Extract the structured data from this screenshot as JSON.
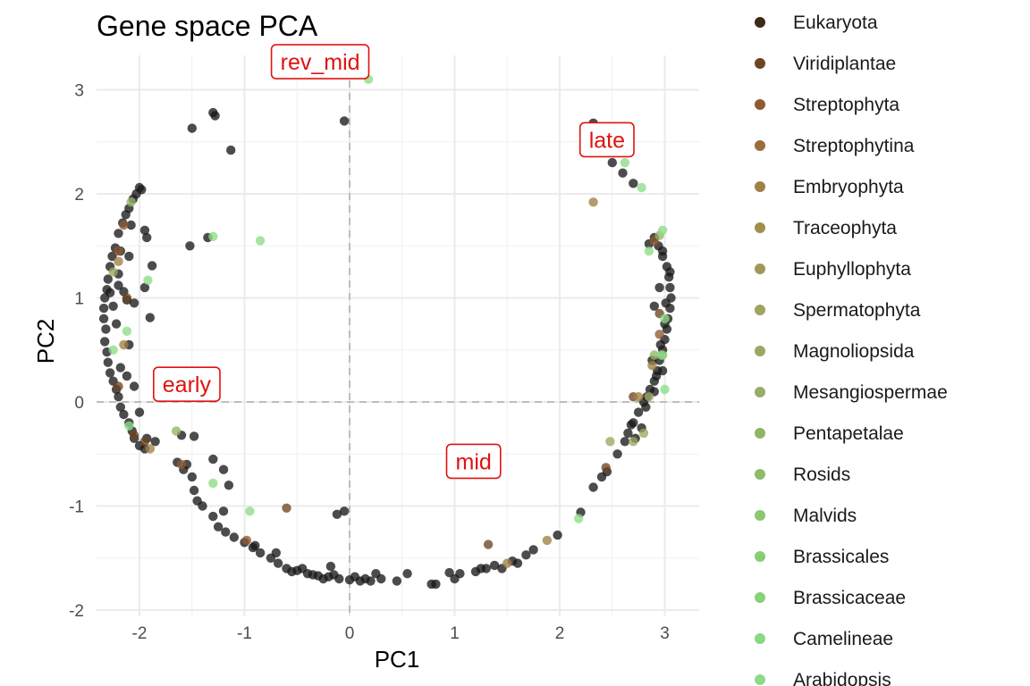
{
  "chart_data": {
    "type": "scatter",
    "title": "Gene space PCA",
    "xlabel": "PC1",
    "ylabel": "PC2",
    "xlim": [
      -2.45,
      3.35
    ],
    "ylim": [
      -2.1,
      3.3
    ],
    "xticks": [
      -2,
      -1,
      0,
      1,
      2,
      3
    ],
    "yticks": [
      -2,
      -1,
      0,
      1,
      2,
      3
    ],
    "xtick_labels": [
      "-2",
      "-1",
      "0",
      "1",
      "2",
      "3"
    ],
    "ytick_labels": [
      "-2",
      "-1",
      "0",
      "1",
      "2",
      "3"
    ],
    "grid": true,
    "reference_lines": {
      "x": 0,
      "y": 0,
      "style": "dashed"
    },
    "legend_position": "right",
    "legend": [
      {
        "label": "Eukaryota",
        "color": "#3d2a16"
      },
      {
        "label": "Viridiplantae",
        "color": "#6e4523"
      },
      {
        "label": "Streptophyta",
        "color": "#8f5a33"
      },
      {
        "label": "Streptophytina",
        "color": "#9a6d3a"
      },
      {
        "label": "Embryophyta",
        "color": "#a08045"
      },
      {
        "label": "Traceophyta",
        "color": "#a38f4c"
      },
      {
        "label": "Euphyllophyta",
        "color": "#a09858"
      },
      {
        "label": "Spermatophyta",
        "color": "#9ea35e"
      },
      {
        "label": "Magnoliopsida",
        "color": "#9ba862"
      },
      {
        "label": "Mesangiospermae",
        "color": "#98ad68"
      },
      {
        "label": "Pentapetalae",
        "color": "#92b467"
      },
      {
        "label": "Rosids",
        "color": "#8fbb6c"
      },
      {
        "label": "Malvids",
        "color": "#8ac770"
      },
      {
        "label": "Brassicales",
        "color": "#89cc74"
      },
      {
        "label": "Brassicaceae",
        "color": "#88d27a"
      },
      {
        "label": "Camelineae",
        "color": "#8ad881"
      },
      {
        "label": "Arabidopsis",
        "color": "#8cdc86"
      }
    ],
    "annotations": [
      {
        "label": "rev_mid",
        "x": -0.28,
        "y": 3.27
      },
      {
        "label": "late",
        "x": 2.45,
        "y": 2.52
      },
      {
        "label": "early",
        "x": -1.55,
        "y": 0.17
      },
      {
        "label": "mid",
        "x": 1.18,
        "y": -0.57
      }
    ],
    "series": [
      {
        "name": "Eukaryota",
        "color": "#1a1a1a",
        "points": [
          [
            -1.5,
            2.63
          ],
          [
            -1.3,
            2.78
          ],
          [
            -1.28,
            2.75
          ],
          [
            -1.13,
            2.42
          ],
          [
            -0.05,
            2.7
          ],
          [
            2.32,
            2.68
          ],
          [
            2.5,
            2.3
          ],
          [
            2.6,
            2.2
          ],
          [
            2.7,
            2.1
          ],
          [
            -2.0,
            2.06
          ],
          [
            -1.98,
            2.04
          ],
          [
            -2.03,
            2.0
          ],
          [
            -2.06,
            1.95
          ],
          [
            -2.1,
            1.86
          ],
          [
            -2.13,
            1.8
          ],
          [
            -2.16,
            1.72
          ],
          [
            -2.2,
            1.62
          ],
          [
            -2.23,
            1.48
          ],
          [
            -2.26,
            1.4
          ],
          [
            -2.28,
            1.3
          ],
          [
            -2.3,
            1.18
          ],
          [
            -2.31,
            1.08
          ],
          [
            -2.33,
            1.0
          ],
          [
            -2.34,
            0.9
          ],
          [
            -2.34,
            0.8
          ],
          [
            -2.32,
            0.7
          ],
          [
            -2.33,
            0.58
          ],
          [
            -2.31,
            0.48
          ],
          [
            -2.3,
            0.38
          ],
          [
            -2.28,
            0.28
          ],
          [
            -2.25,
            0.2
          ],
          [
            -2.22,
            0.12
          ],
          [
            -2.2,
            0.05
          ],
          [
            -2.18,
            -0.05
          ],
          [
            -2.15,
            -0.12
          ],
          [
            -2.1,
            -0.2
          ],
          [
            -2.07,
            -0.28
          ],
          [
            -2.05,
            -0.35
          ],
          [
            -2.0,
            -0.42
          ],
          [
            -1.95,
            -0.45
          ],
          [
            -2.2,
            1.23
          ],
          [
            -2.2,
            1.12
          ],
          [
            -2.15,
            1.06
          ],
          [
            -2.25,
            0.92
          ],
          [
            -2.12,
            0.98
          ],
          [
            -2.1,
            1.4
          ],
          [
            -2.08,
            1.7
          ],
          [
            -1.95,
            1.65
          ],
          [
            -1.93,
            1.58
          ],
          [
            -1.88,
            1.31
          ],
          [
            -1.9,
            0.81
          ],
          [
            -1.52,
            1.5
          ],
          [
            -2.1,
            0.55
          ],
          [
            -2.05,
            0.15
          ],
          [
            -2.0,
            -0.1
          ],
          [
            -1.93,
            -0.35
          ],
          [
            -1.6,
            -0.32
          ],
          [
            -1.48,
            -0.33
          ],
          [
            -1.64,
            -0.58
          ],
          [
            -1.58,
            -0.65
          ],
          [
            -1.3,
            -0.55
          ],
          [
            -1.2,
            -0.65
          ],
          [
            -1.5,
            -0.72
          ],
          [
            -1.48,
            -0.85
          ],
          [
            -1.15,
            -0.8
          ],
          [
            -1.45,
            -0.95
          ],
          [
            -1.4,
            -1.0
          ],
          [
            -1.3,
            -1.1
          ],
          [
            -1.25,
            -1.2
          ],
          [
            -1.18,
            -1.25
          ],
          [
            -1.1,
            -1.3
          ],
          [
            -1.0,
            -1.35
          ],
          [
            -0.92,
            -1.4
          ],
          [
            -0.85,
            -1.45
          ],
          [
            -0.75,
            -1.5
          ],
          [
            -0.68,
            -1.55
          ],
          [
            -0.6,
            -1.6
          ],
          [
            -0.5,
            -1.62
          ],
          [
            -0.4,
            -1.65
          ],
          [
            -0.3,
            -1.67
          ],
          [
            -0.2,
            -1.68
          ],
          [
            -0.1,
            -1.7
          ],
          [
            0.0,
            -1.71
          ],
          [
            0.1,
            -1.72
          ],
          [
            0.2,
            -1.72
          ],
          [
            0.3,
            -1.7
          ],
          [
            -0.45,
            -1.6
          ],
          [
            -0.18,
            -1.58
          ],
          [
            -0.12,
            -1.08
          ],
          [
            -0.05,
            -1.05
          ],
          [
            0.45,
            -1.72
          ],
          [
            0.55,
            -1.65
          ],
          [
            0.78,
            -1.75
          ],
          [
            0.82,
            -1.75
          ],
          [
            0.95,
            -1.64
          ],
          [
            1.0,
            -1.7
          ],
          [
            1.2,
            -1.63
          ],
          [
            1.25,
            -1.6
          ],
          [
            1.3,
            -1.6
          ],
          [
            1.38,
            -1.57
          ],
          [
            1.55,
            -1.53
          ],
          [
            1.68,
            -1.47
          ],
          [
            1.75,
            -1.42
          ],
          [
            1.98,
            -1.28
          ],
          [
            2.2,
            -1.06
          ],
          [
            2.32,
            -0.82
          ],
          [
            2.4,
            -0.72
          ],
          [
            2.45,
            -0.67
          ],
          [
            2.55,
            -0.5
          ],
          [
            2.62,
            -0.38
          ],
          [
            2.65,
            -0.3
          ],
          [
            2.7,
            -0.2
          ],
          [
            2.75,
            -0.1
          ],
          [
            2.8,
            0.0
          ],
          [
            2.83,
            0.05
          ],
          [
            2.86,
            0.12
          ],
          [
            2.9,
            0.2
          ],
          [
            2.93,
            0.3
          ],
          [
            2.95,
            0.4
          ],
          [
            2.98,
            0.5
          ],
          [
            3.0,
            0.6
          ],
          [
            3.02,
            0.7
          ],
          [
            3.03,
            0.8
          ],
          [
            3.05,
            0.9
          ],
          [
            3.06,
            1.0
          ],
          [
            3.05,
            1.1
          ],
          [
            3.04,
            1.2
          ],
          [
            3.02,
            1.3
          ],
          [
            2.98,
            1.4
          ],
          [
            2.94,
            1.5
          ],
          [
            2.9,
            1.58
          ],
          [
            2.85,
            1.52
          ],
          [
            2.98,
            1.45
          ],
          [
            2.95,
            1.1
          ],
          [
            2.9,
            0.92
          ],
          [
            3.0,
            0.75
          ],
          [
            2.96,
            0.55
          ],
          [
            2.92,
            0.25
          ],
          [
            2.9,
            0.1
          ],
          [
            2.78,
            -0.25
          ],
          [
            2.72,
            -0.35
          ],
          [
            2.68,
            -0.22
          ],
          [
            3.05,
            1.25
          ],
          [
            3.01,
            0.95
          ],
          [
            2.88,
            0.4
          ],
          [
            2.98,
            0.3
          ],
          [
            2.82,
            -0.05
          ],
          [
            -1.35,
            1.58
          ],
          [
            -1.95,
            1.1
          ],
          [
            -2.18,
            1.45
          ],
          [
            -2.28,
            1.05
          ],
          [
            -2.05,
            0.95
          ],
          [
            -2.22,
            0.75
          ],
          [
            -2.18,
            0.33
          ],
          [
            -2.12,
            0.25
          ],
          [
            -1.85,
            -0.38
          ],
          [
            -1.55,
            -0.6
          ],
          [
            -1.2,
            -1.05
          ],
          [
            -0.9,
            -1.38
          ],
          [
            -0.7,
            -1.45
          ],
          [
            -0.55,
            -1.63
          ],
          [
            -0.35,
            -1.66
          ],
          [
            -0.25,
            -1.7
          ],
          [
            -0.15,
            -1.66
          ],
          [
            0.05,
            -1.68
          ],
          [
            0.15,
            -1.7
          ],
          [
            0.25,
            -1.65
          ],
          [
            1.05,
            -1.65
          ],
          [
            1.45,
            -1.6
          ],
          [
            1.6,
            -1.55
          ]
        ]
      },
      {
        "name": "Viridiplantae",
        "color": "#6e4523",
        "points": [
          [
            -2.05,
            -0.32
          ],
          [
            -1.95,
            -0.38
          ],
          [
            -2.2,
            0.15
          ],
          [
            -0.6,
            -1.02
          ],
          [
            1.32,
            -1.37
          ],
          [
            2.44,
            -0.63
          ],
          [
            2.7,
            0.05
          ],
          [
            2.95,
            0.85
          ],
          [
            -2.12,
            1.0
          ]
        ]
      },
      {
        "name": "Streptophyta",
        "color": "#8f5a33",
        "points": [
          [
            -2.15,
            1.7
          ],
          [
            -2.2,
            1.45
          ],
          [
            -0.98,
            -1.33
          ],
          [
            2.9,
            1.55
          ],
          [
            2.95,
            0.65
          ],
          [
            -1.6,
            -0.6
          ]
        ]
      },
      {
        "name": "Embryophyta",
        "color": "#a08045",
        "points": [
          [
            2.32,
            1.92
          ],
          [
            1.88,
            -1.33
          ],
          [
            1.5,
            -1.55
          ],
          [
            2.75,
            0.05
          ],
          [
            -2.2,
            1.35
          ],
          [
            -2.15,
            0.55
          ],
          [
            2.88,
            0.35
          ],
          [
            -1.9,
            -0.45
          ]
        ]
      },
      {
        "name": "Magnoliopsida",
        "color": "#9ba862",
        "points": [
          [
            2.48,
            -0.38
          ],
          [
            2.8,
            -0.3
          ],
          [
            -2.25,
            1.25
          ],
          [
            2.85,
            0.05
          ],
          [
            2.7,
            -0.38
          ]
        ]
      },
      {
        "name": "Pentapetalae",
        "color": "#92b467",
        "points": [
          [
            2.95,
            1.6
          ],
          [
            -1.65,
            -0.28
          ],
          [
            -2.08,
            1.92
          ],
          [
            2.98,
            0.45
          ],
          [
            2.9,
            0.45
          ]
        ]
      },
      {
        "name": "Arabidopsis",
        "color": "#8cdc86",
        "points": [
          [
            0.18,
            3.1
          ],
          [
            2.62,
            2.3
          ],
          [
            2.78,
            2.06
          ],
          [
            -1.3,
            1.59
          ],
          [
            -0.85,
            1.55
          ],
          [
            -1.92,
            1.17
          ],
          [
            -2.12,
            0.68
          ],
          [
            -2.25,
            0.5
          ],
          [
            2.98,
            1.65
          ],
          [
            3.0,
            0.8
          ],
          [
            2.97,
            0.45
          ],
          [
            -1.3,
            -0.78
          ],
          [
            -0.95,
            -1.05
          ],
          [
            2.18,
            -1.12
          ],
          [
            -2.1,
            -0.23
          ],
          [
            2.85,
            1.45
          ],
          [
            3.0,
            0.12
          ]
        ]
      }
    ]
  }
}
